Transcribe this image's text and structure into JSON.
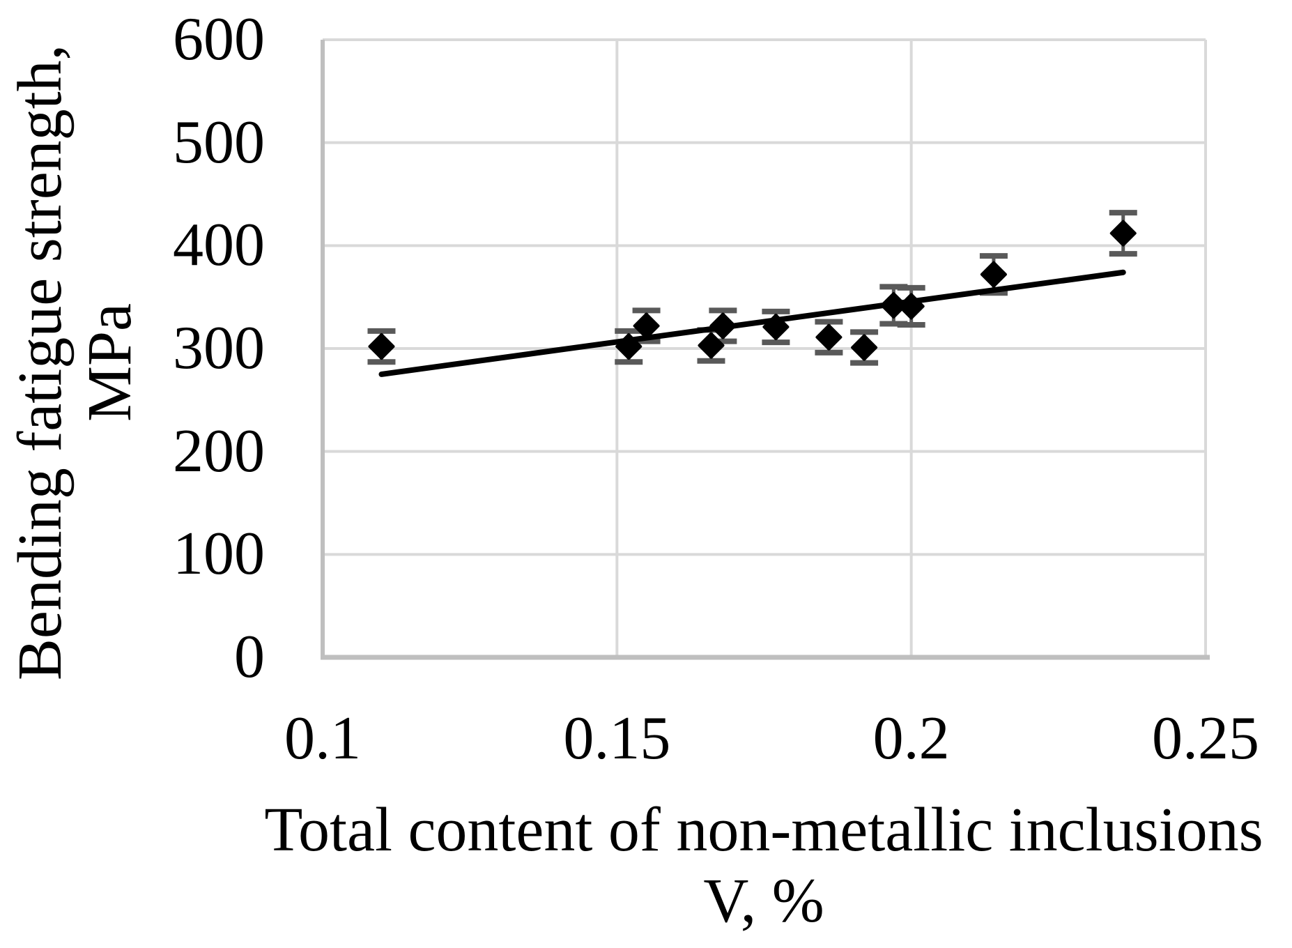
{
  "figure": {
    "background": "#ffffff"
  },
  "chart_data": {
    "type": "scatter",
    "title": "",
    "xlabel_line1": "Total content of non-metallic inclusions",
    "xlabel_line2": "V, %",
    "ylabel_line1": "Bending fatigue strength,",
    "ylabel_line2": "MPa",
    "xlim": [
      0.1,
      0.25
    ],
    "ylim": [
      0,
      600
    ],
    "x_ticks": [
      0.1,
      0.15,
      0.2,
      0.25
    ],
    "x_tick_labels": [
      "0.1",
      "0.15",
      "0.2",
      "0.25"
    ],
    "y_ticks": [
      0,
      100,
      200,
      300,
      400,
      500,
      600
    ],
    "y_tick_labels": [
      "0",
      "100",
      "200",
      "300",
      "400",
      "500",
      "600"
    ],
    "grid": true,
    "legend": "none",
    "series": [
      {
        "name": "bending-fatigue-strength-measurements",
        "marker": "diamond",
        "color": "#000000",
        "error_bar_color": "#595959",
        "points": [
          {
            "x": 0.11,
            "y": 302,
            "yerr": 15
          },
          {
            "x": 0.152,
            "y": 302,
            "yerr": 15
          },
          {
            "x": 0.155,
            "y": 322,
            "yerr": 15
          },
          {
            "x": 0.166,
            "y": 303,
            "yerr": 15
          },
          {
            "x": 0.168,
            "y": 322,
            "yerr": 15
          },
          {
            "x": 0.177,
            "y": 321,
            "yerr": 15
          },
          {
            "x": 0.186,
            "y": 311,
            "yerr": 15
          },
          {
            "x": 0.192,
            "y": 301,
            "yerr": 15
          },
          {
            "x": 0.197,
            "y": 342,
            "yerr": 18
          },
          {
            "x": 0.2,
            "y": 341,
            "yerr": 18
          },
          {
            "x": 0.214,
            "y": 372,
            "yerr": 18
          },
          {
            "x": 0.236,
            "y": 412,
            "yerr": 20
          }
        ]
      }
    ],
    "trendline": {
      "x_start": 0.11,
      "y_start": 275,
      "x_end": 0.236,
      "y_end": 374,
      "color": "#000000"
    },
    "colors": {
      "gridline": "#d9d9d9",
      "axis_line": "#bfbfbf",
      "text": "#000000"
    }
  }
}
